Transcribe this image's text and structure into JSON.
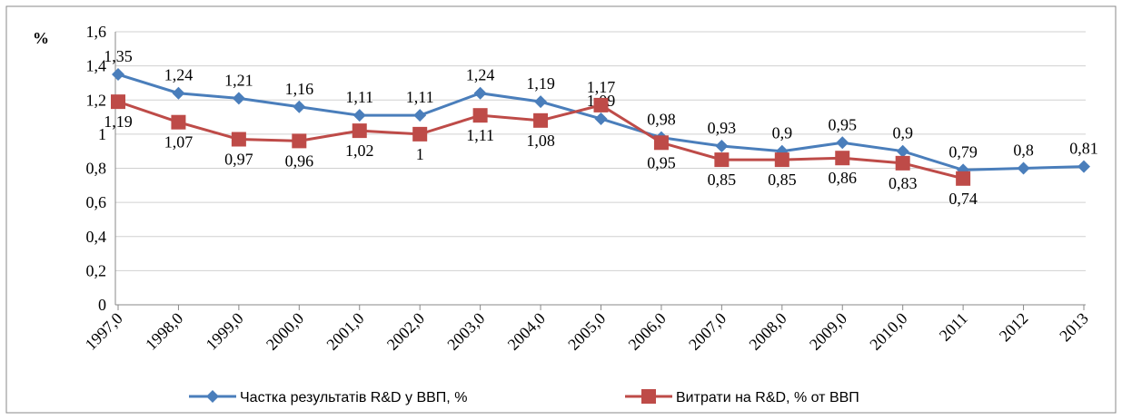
{
  "chart_data": {
    "type": "line",
    "y_label": "%",
    "categories": [
      "1997,0",
      "1998,0",
      "1999,0",
      "2000,0",
      "2001,0",
      "2002,0",
      "2003,0",
      "2004,0",
      "2005,0",
      "2006,0",
      "2007,0",
      "2008,0",
      "2009,0",
      "2010,0",
      "2011",
      "2012",
      "2013"
    ],
    "series": [
      {
        "name": "Частка результатів R&D у ВВП, %",
        "color": "#4a7ebb",
        "values": [
          1.35,
          1.24,
          1.21,
          1.16,
          1.11,
          1.11,
          1.24,
          1.19,
          1.09,
          0.98,
          0.93,
          0.9,
          0.95,
          0.9,
          0.79,
          0.8,
          0.81
        ],
        "value_labels": [
          "1,35",
          "1,24",
          "1,21",
          "1,16",
          "1,11",
          "1,11",
          "1,24",
          "1,19",
          "1,09",
          "0,98",
          "0,93",
          "0,9",
          "0,95",
          "0,9",
          "0,79",
          "0,8",
          "0,81"
        ]
      },
      {
        "name": "Витрати на R&D, % от ВВП",
        "color": "#be4b48",
        "values": [
          1.19,
          1.07,
          0.97,
          0.96,
          1.02,
          1,
          1.11,
          1.08,
          1.17,
          0.95,
          0.85,
          0.85,
          0.86,
          0.83,
          0.74,
          null,
          null
        ],
        "value_labels": [
          "1,19",
          "1,07",
          "0,97",
          "0,96",
          "1,02",
          "1",
          "1,11",
          "1,08",
          "1,17",
          "0,95",
          "0,85",
          "0,85",
          "0,86",
          "0,83",
          "0,74",
          null,
          null
        ]
      }
    ],
    "ylim": [
      0,
      1.6
    ],
    "yticks": [
      0,
      {
        "value": 0.2,
        "label": "0,2"
      },
      {
        "value": 0.4,
        "label": "0,4"
      },
      {
        "value": 0.6,
        "label": "0,6"
      },
      {
        "value": 0.8,
        "label": "0,8"
      },
      {
        "value": 1,
        "label": "1"
      },
      {
        "value": 1.2,
        "label": "1,2"
      },
      {
        "value": 1.4,
        "label": "1,4"
      },
      {
        "value": 1.6,
        "label": "1,6"
      }
    ],
    "grid": true,
    "legend": "bottom"
  }
}
